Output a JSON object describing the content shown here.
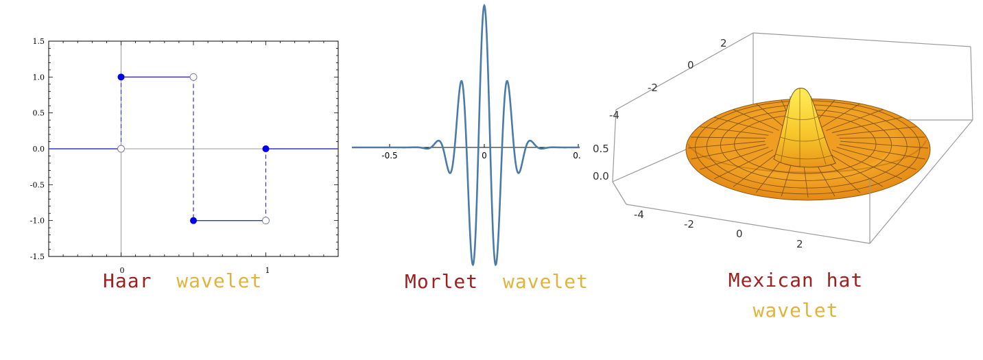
{
  "chart_data": [
    {
      "type": "line",
      "caption": [
        "Haar",
        "wavelet"
      ],
      "xlim": [
        -0.5,
        1.5
      ],
      "ylim": [
        -1.5,
        1.5
      ],
      "x_ticks": [
        "0",
        "1"
      ],
      "y_ticks": [
        "1.5",
        "1.0",
        "0.5",
        "0.0",
        "-0.5",
        "-1.0",
        "-1.5"
      ],
      "grid": false,
      "segments": [
        {
          "x": [
            -0.5,
            0
          ],
          "y": [
            0,
            0
          ]
        },
        {
          "x": [
            0,
            0.5
          ],
          "y": [
            1,
            1
          ]
        },
        {
          "x": [
            0.5,
            1
          ],
          "y": [
            -1,
            -1
          ]
        },
        {
          "x": [
            1,
            1.5
          ],
          "y": [
            0,
            0
          ]
        }
      ],
      "filled_points": [
        {
          "x": 0,
          "y": 1
        },
        {
          "x": 0.5,
          "y": -1
        },
        {
          "x": 1,
          "y": 0
        }
      ],
      "open_points": [
        {
          "x": 0,
          "y": 0
        },
        {
          "x": 0.5,
          "y": 1
        },
        {
          "x": 1,
          "y": -1
        }
      ],
      "colors": {
        "line": "#3232c8",
        "marker": "#0000e6",
        "axis": "#999999"
      }
    },
    {
      "type": "line",
      "caption": [
        "Morlet",
        "wavelet"
      ],
      "x_ticks": [
        "-0.5",
        "0",
        "0."
      ],
      "xlim": [
        -0.75,
        0.55
      ],
      "function": "cos(5 x / 0.1) * exp(-(x / 0.1)^2 / 2)",
      "colors": {
        "line": "#4a7aa8"
      }
    },
    {
      "type": "surface",
      "caption": [
        "Mexican hat",
        "wavelet"
      ],
      "function": "(1 - r^2) exp(-r^2 / 2)",
      "x_ticks": [
        "-4",
        "-2",
        "0",
        "2"
      ],
      "y_ticks": [
        "-4",
        "-2",
        "0",
        "2"
      ],
      "z_ticks": [
        "0.5",
        "0.0"
      ],
      "colors": {
        "surface": "#f5a020",
        "peak": "#ffe94a",
        "mesh": "#5a3a10",
        "box": "#999999"
      }
    }
  ]
}
